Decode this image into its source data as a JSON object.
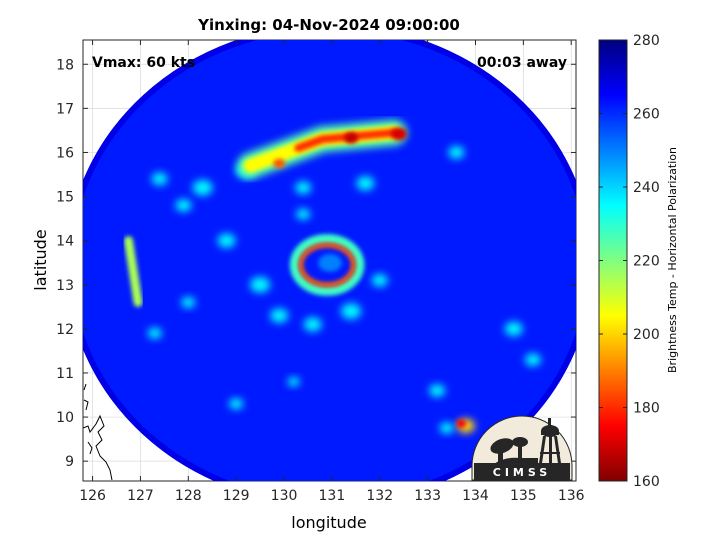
{
  "chart_data": {
    "type": "heatmap",
    "title": "Yinxing: 04-Nov-2024 09:00:00",
    "xlabel": "longitude",
    "ylabel": "latitude",
    "xlim": [
      125.8,
      136.1
    ],
    "ylim": [
      8.55,
      18.55
    ],
    "x_ticks": [
      "126",
      "127",
      "128",
      "129",
      "130",
      "131",
      "132",
      "133",
      "134",
      "135",
      "136"
    ],
    "y_ticks": [
      "9",
      "10",
      "11",
      "12",
      "13",
      "14",
      "15",
      "16",
      "17",
      "18"
    ],
    "grid": true,
    "annotations": {
      "left": "Vmax: 60 kts",
      "right": "00:03 away"
    },
    "swath": {
      "center_lon": 130.95,
      "center_lat": 13.45,
      "radius_lon": 5.5,
      "radius_lat": 5.45
    },
    "colorbar": {
      "label": "Brightness Temp - Horizontal Polarization",
      "min": 160,
      "max": 280,
      "ticks": [
        "160",
        "180",
        "200",
        "220",
        "240",
        "260",
        "280"
      ],
      "colormap": "jet"
    },
    "features": [
      {
        "name": "eyewall ring",
        "lon": 130.9,
        "lat": 13.45,
        "rx": 0.55,
        "ry": 0.45,
        "tb": 185
      },
      {
        "name": "northern rainband",
        "points": [
          [
            129.3,
            15.7
          ],
          [
            129.8,
            15.9
          ],
          [
            130.3,
            16.1
          ],
          [
            130.8,
            16.3
          ],
          [
            131.3,
            16.35
          ],
          [
            131.8,
            16.4
          ],
          [
            132.3,
            16.45
          ]
        ],
        "tb": 180
      },
      {
        "name": "western warm strip",
        "lon": 126.8,
        "lat": 13.1,
        "tb": 215
      },
      {
        "name": "southeast convection",
        "lon": 133.8,
        "lat": 9.8,
        "tb": 175
      }
    ],
    "logo": "CIMSS"
  }
}
